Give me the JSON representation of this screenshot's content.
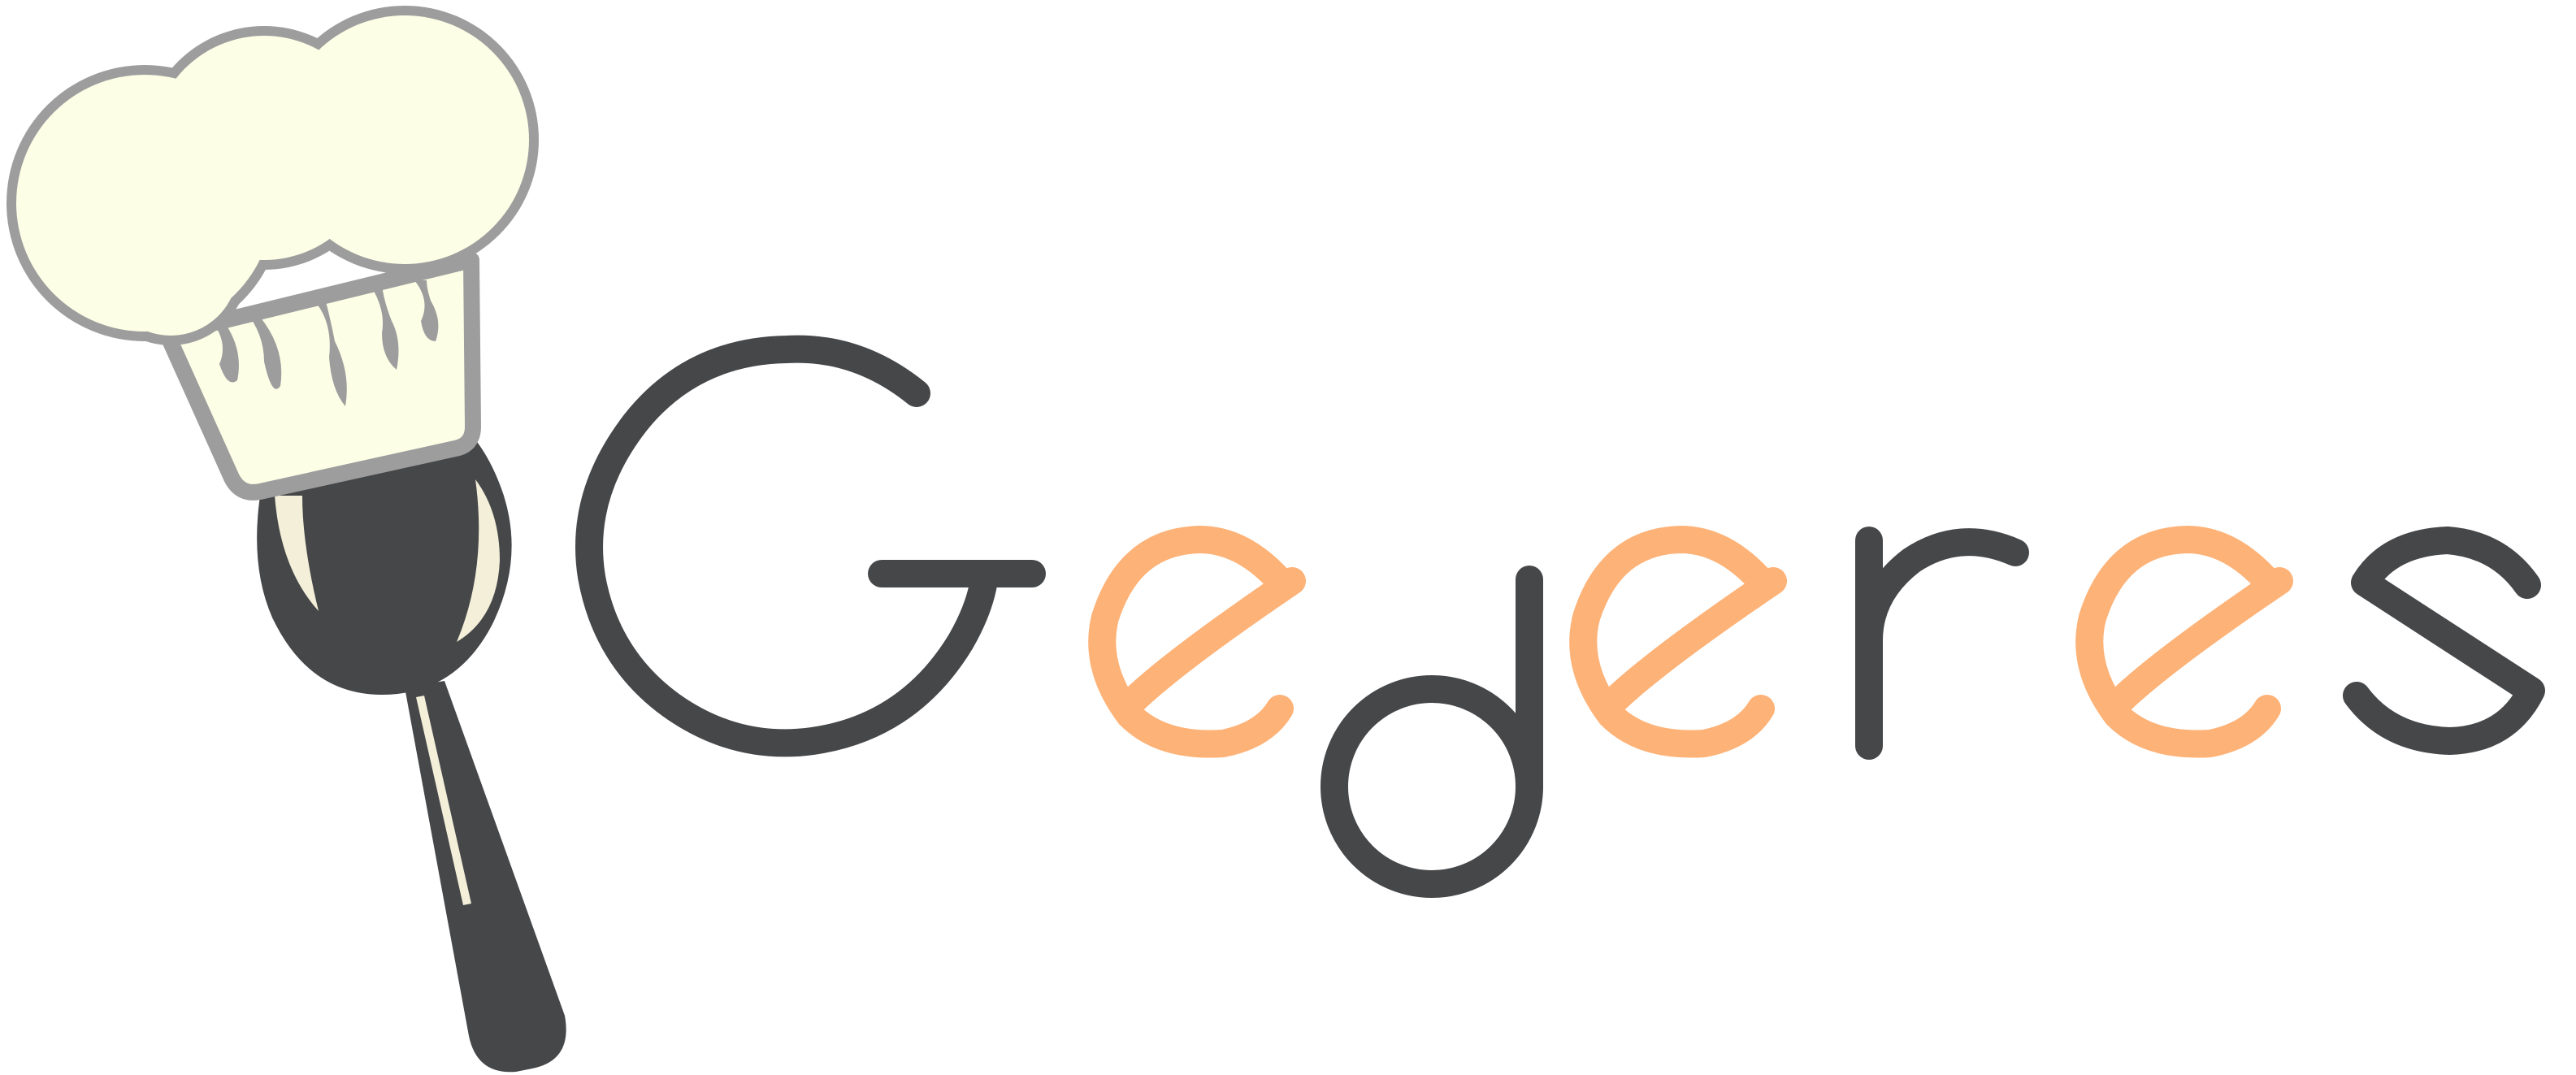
{
  "logo": {
    "wordmark": "Gederes",
    "letters": [
      "G",
      "e",
      "d",
      "e",
      "r",
      "e",
      "s"
    ],
    "mascot": "chef-hat-spoon",
    "colors": {
      "background": "#ffffff",
      "dark_gray": "#464749",
      "orange": "#fdb277",
      "hat_fill": "#fdfee6",
      "hat_outline": "#9d9d9d",
      "spoon_highlight": "#f3efd9"
    }
  }
}
